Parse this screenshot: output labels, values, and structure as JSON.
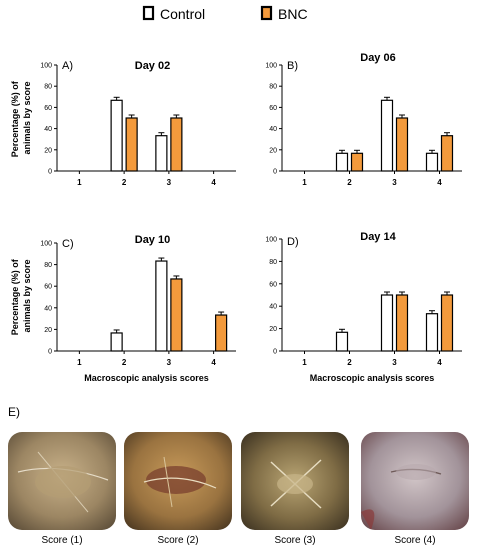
{
  "legend": {
    "items": [
      {
        "name": "Control",
        "color": "#ffffff",
        "stroke": "#000000"
      },
      {
        "name": "BNC",
        "color": "#f39a3c",
        "stroke": "#000000"
      }
    ]
  },
  "chart_data": [
    {
      "type": "bar",
      "panel": "A)",
      "title": "Day 02",
      "categories": [
        "1",
        "2",
        "3",
        "4"
      ],
      "series": [
        {
          "name": "Control",
          "values": [
            0,
            66.7,
            33.3,
            0
          ]
        },
        {
          "name": "BNC",
          "values": [
            0,
            50,
            50,
            0
          ]
        }
      ],
      "ylabel": "Percentage (%) of animals by score",
      "xlabel": "",
      "ylim": [
        0,
        100
      ],
      "yticks": [
        0,
        20,
        40,
        60,
        80,
        100
      ],
      "grid": false
    },
    {
      "type": "bar",
      "panel": "B)",
      "title": "Day 06",
      "categories": [
        "1",
        "2",
        "3",
        "4"
      ],
      "series": [
        {
          "name": "Control",
          "values": [
            0,
            16.7,
            66.7,
            16.7
          ]
        },
        {
          "name": "BNC",
          "values": [
            0,
            16.7,
            50,
            33.3
          ]
        }
      ],
      "ylabel": "",
      "xlabel": "",
      "ylim": [
        0,
        100
      ],
      "yticks": [
        0,
        20,
        40,
        60,
        80,
        100
      ],
      "grid": false
    },
    {
      "type": "bar",
      "panel": "C)",
      "title": "Day 10",
      "categories": [
        "1",
        "2",
        "3",
        "4"
      ],
      "series": [
        {
          "name": "Control",
          "values": [
            0,
            16.7,
            83.3,
            0
          ]
        },
        {
          "name": "BNC",
          "values": [
            0,
            0,
            66.7,
            33.3
          ]
        }
      ],
      "ylabel": "Percentage (%) of animals by score",
      "xlabel": "Macroscopic analysis scores",
      "ylim": [
        0,
        100
      ],
      "yticks": [
        0,
        20,
        40,
        60,
        80,
        100
      ],
      "grid": false
    },
    {
      "type": "bar",
      "panel": "D)",
      "title": "Day 14",
      "categories": [
        "1",
        "2",
        "3",
        "4"
      ],
      "series": [
        {
          "name": "Control",
          "values": [
            0,
            16.7,
            50,
            33.3
          ]
        },
        {
          "name": "BNC",
          "values": [
            0,
            0,
            50,
            50
          ]
        }
      ],
      "ylabel": "",
      "xlabel": "Macroscopic analysis scores",
      "ylim": [
        0,
        100
      ],
      "yticks": [
        0,
        20,
        40,
        60,
        80,
        100
      ],
      "grid": false
    }
  ],
  "photos": {
    "label": "E)",
    "items": [
      {
        "caption": "Score (1)",
        "tone": "#a4916e"
      },
      {
        "caption": "Score (2)",
        "tone": "#9c7a46"
      },
      {
        "caption": "Score (3)",
        "tone": "#8a7a52"
      },
      {
        "caption": "Score (4)",
        "tone": "#9a8890"
      }
    ]
  }
}
